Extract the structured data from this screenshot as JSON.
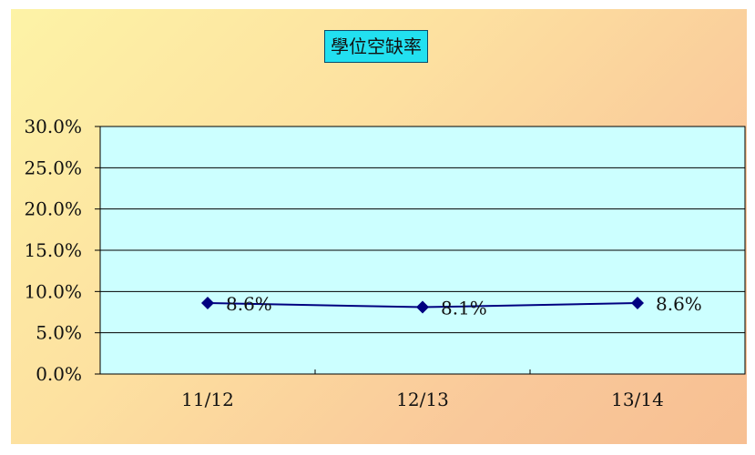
{
  "chart_data": {
    "type": "line",
    "title": "學位空缺率",
    "xlabel": "",
    "ylabel": "",
    "categories": [
      "11/12",
      "12/13",
      "13/14"
    ],
    "series": [
      {
        "values": [
          8.6,
          8.1,
          8.6
        ],
        "data_labels": [
          "8.6%",
          "8.1%",
          "8.6%"
        ],
        "color": "#000080"
      }
    ],
    "y_ticks": [
      "0.0%",
      "5.0%",
      "10.0%",
      "15.0%",
      "20.0%",
      "25.0%",
      "30.0%"
    ],
    "ylim": [
      0,
      30
    ],
    "grid": true,
    "legend": "none",
    "colors": {
      "plot_background": "#ccffff",
      "title_background": "#22e0f0",
      "line": "#000080"
    }
  }
}
